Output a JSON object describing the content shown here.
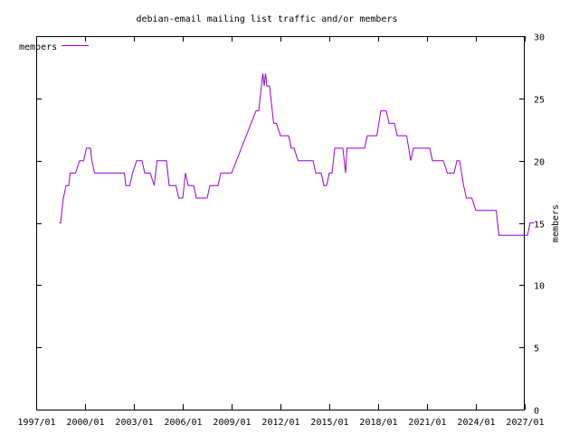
{
  "chart_data": {
    "type": "line",
    "title": "debian-email mailing list traffic and/or members",
    "xlabel": "",
    "ylabel": "members",
    "x_axis_type": "date",
    "xlim": [
      "1997-01-01",
      "2027-01-01"
    ],
    "ylim": [
      0,
      30
    ],
    "x_ticks": [
      "1997/01",
      "2000/01",
      "2003/01",
      "2006/01",
      "2009/01",
      "2012/01",
      "2015/01",
      "2018/01",
      "2021/01",
      "2024/01",
      "2027/01"
    ],
    "y_ticks": [
      0,
      5,
      10,
      15,
      20,
      25,
      30
    ],
    "y_axis_side": "right",
    "grid": false,
    "legend_position": "top-left",
    "series": [
      {
        "name": "members",
        "color": "#9400d3",
        "points": [
          [
            "1998-06-01",
            15
          ],
          [
            "1998-07-01",
            15
          ],
          [
            "1998-09-01",
            17
          ],
          [
            "1998-11-01",
            18
          ],
          [
            "1999-01-01",
            18
          ],
          [
            "1999-02-01",
            19
          ],
          [
            "1999-06-01",
            19
          ],
          [
            "1999-09-01",
            20
          ],
          [
            "1999-12-01",
            20
          ],
          [
            "2000-02-01",
            21
          ],
          [
            "2000-05-01",
            21
          ],
          [
            "2000-06-01",
            20
          ],
          [
            "2000-08-01",
            19
          ],
          [
            "2002-06-01",
            19
          ],
          [
            "2002-07-01",
            18
          ],
          [
            "2002-10-01",
            18
          ],
          [
            "2002-12-01",
            19
          ],
          [
            "2003-03-01",
            20
          ],
          [
            "2003-07-01",
            20
          ],
          [
            "2003-09-01",
            19
          ],
          [
            "2004-01-01",
            19
          ],
          [
            "2004-04-01",
            18
          ],
          [
            "2004-06-01",
            20
          ],
          [
            "2005-01-01",
            20
          ],
          [
            "2005-03-01",
            18
          ],
          [
            "2005-08-01",
            18
          ],
          [
            "2005-10-01",
            17
          ],
          [
            "2006-01-01",
            17
          ],
          [
            "2006-03-01",
            19
          ],
          [
            "2006-05-01",
            18
          ],
          [
            "2006-09-01",
            18
          ],
          [
            "2006-11-01",
            17
          ],
          [
            "2007-07-01",
            17
          ],
          [
            "2007-09-01",
            18
          ],
          [
            "2008-03-01",
            18
          ],
          [
            "2008-05-01",
            19
          ],
          [
            "2009-01-01",
            19
          ],
          [
            "2010-07-01",
            24
          ],
          [
            "2010-09-01",
            24
          ],
          [
            "2010-12-01",
            27
          ],
          [
            "2011-01-01",
            26
          ],
          [
            "2011-02-01",
            27
          ],
          [
            "2011-03-01",
            26
          ],
          [
            "2011-05-01",
            26
          ],
          [
            "2011-08-01",
            23
          ],
          [
            "2011-10-01",
            23
          ],
          [
            "2012-01-01",
            22
          ],
          [
            "2012-07-01",
            22
          ],
          [
            "2012-09-01",
            21
          ],
          [
            "2012-11-01",
            21
          ],
          [
            "2013-02-01",
            20
          ],
          [
            "2014-01-01",
            20
          ],
          [
            "2014-03-01",
            19
          ],
          [
            "2014-07-01",
            19
          ],
          [
            "2014-09-01",
            18
          ],
          [
            "2014-11-01",
            18
          ],
          [
            "2015-01-01",
            19
          ],
          [
            "2015-03-01",
            19
          ],
          [
            "2015-05-01",
            21
          ],
          [
            "2015-11-01",
            21
          ],
          [
            "2016-01-01",
            19
          ],
          [
            "2016-02-01",
            21
          ],
          [
            "2017-03-01",
            21
          ],
          [
            "2017-05-01",
            22
          ],
          [
            "2017-12-01",
            22
          ],
          [
            "2018-03-01",
            24
          ],
          [
            "2018-07-01",
            24
          ],
          [
            "2018-09-01",
            23
          ],
          [
            "2019-01-01",
            23
          ],
          [
            "2019-03-01",
            22
          ],
          [
            "2019-10-01",
            22
          ],
          [
            "2020-01-01",
            20
          ],
          [
            "2020-03-01",
            21
          ],
          [
            "2021-03-01",
            21
          ],
          [
            "2021-05-01",
            20
          ],
          [
            "2022-01-01",
            20
          ],
          [
            "2022-04-01",
            19
          ],
          [
            "2022-09-01",
            19
          ],
          [
            "2022-11-01",
            20
          ],
          [
            "2023-01-01",
            20
          ],
          [
            "2023-04-01",
            18
          ],
          [
            "2023-06-01",
            17
          ],
          [
            "2023-10-01",
            17
          ],
          [
            "2024-01-01",
            16
          ],
          [
            "2025-04-01",
            16
          ],
          [
            "2025-06-01",
            14
          ],
          [
            "2027-03-01",
            14
          ],
          [
            "2027-05-01",
            15
          ],
          [
            "2027-08-01",
            15
          ]
        ]
      }
    ]
  }
}
